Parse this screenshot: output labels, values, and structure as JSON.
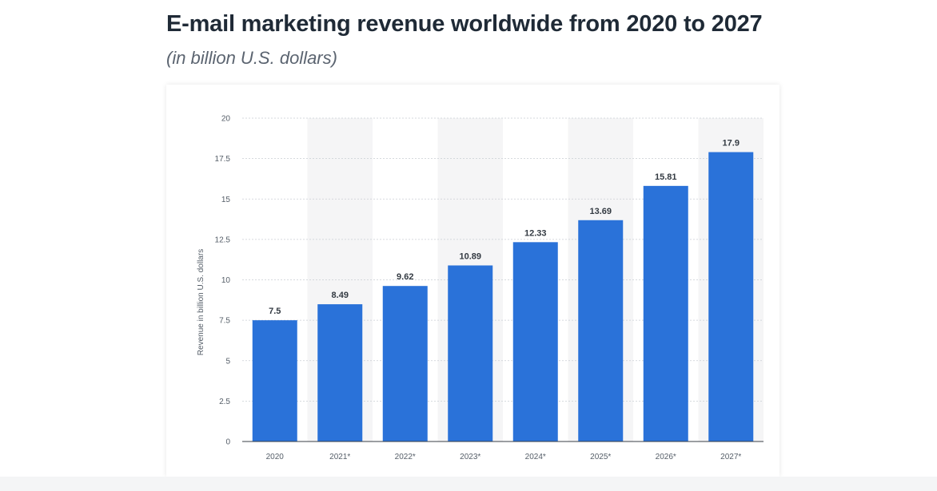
{
  "header": {
    "title": "E-mail marketing revenue worldwide from 2020 to 2027",
    "subtitle": "(in billion U.S. dollars)"
  },
  "chart_data": {
    "type": "bar",
    "categories": [
      "2020",
      "2021*",
      "2022*",
      "2023*",
      "2024*",
      "2025*",
      "2026*",
      "2027*"
    ],
    "values": [
      7.5,
      8.49,
      9.62,
      10.89,
      12.33,
      13.69,
      15.81,
      17.9
    ],
    "data_labels": [
      "7.5",
      "8.49",
      "9.62",
      "10.89",
      "12.33",
      "13.69",
      "15.81",
      "17.9"
    ],
    "title": "E-mail marketing revenue worldwide from 2020 to 2027",
    "subtitle": "(in billion U.S. dollars)",
    "xlabel": "",
    "ylabel": "Revenue in billion U.S. dollars",
    "ylim": [
      0,
      20
    ],
    "yticks": [
      "0",
      "2.5",
      "5",
      "7.5",
      "10",
      "12.5",
      "15",
      "17.5",
      "20"
    ],
    "grid": true,
    "bar_color": "#2a72d9",
    "band_color": "#f5f5f6"
  }
}
